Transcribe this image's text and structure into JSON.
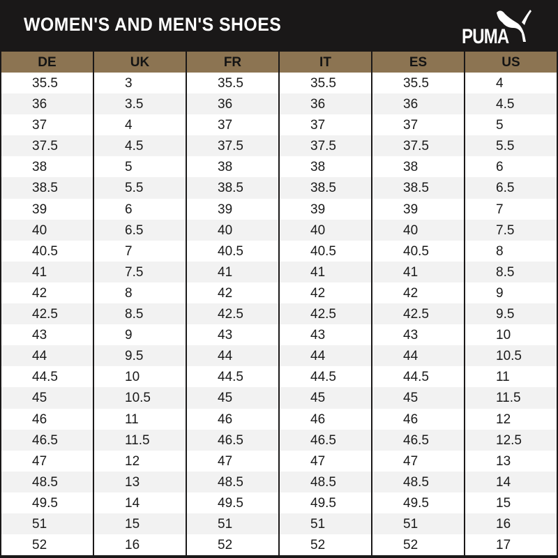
{
  "title": "WOMEN'S AND MEN'S SHOES",
  "logo": "PUMA",
  "colors": {
    "background": "#1a1818",
    "header_row": "#8c7452",
    "row_alt": "#f2f2f2"
  },
  "columns": [
    "DE",
    "UK",
    "FR",
    "IT",
    "ES",
    "US"
  ],
  "rows": [
    [
      "35.5",
      "3",
      "35.5",
      "35.5",
      "35.5",
      "4"
    ],
    [
      "36",
      "3.5",
      "36",
      "36",
      "36",
      "4.5"
    ],
    [
      "37",
      "4",
      "37",
      "37",
      "37",
      "5"
    ],
    [
      "37.5",
      "4.5",
      "37.5",
      "37.5",
      "37.5",
      "5.5"
    ],
    [
      "38",
      "5",
      "38",
      "38",
      "38",
      "6"
    ],
    [
      "38.5",
      "5.5",
      "38.5",
      "38.5",
      "38.5",
      "6.5"
    ],
    [
      "39",
      "6",
      "39",
      "39",
      "39",
      "7"
    ],
    [
      "40",
      "6.5",
      "40",
      "40",
      "40",
      "7.5"
    ],
    [
      "40.5",
      "7",
      "40.5",
      "40.5",
      "40.5",
      "8"
    ],
    [
      "41",
      "7.5",
      "41",
      "41",
      "41",
      "8.5"
    ],
    [
      "42",
      "8",
      "42",
      "42",
      "42",
      "9"
    ],
    [
      "42.5",
      "8.5",
      "42.5",
      "42.5",
      "42.5",
      "9.5"
    ],
    [
      "43",
      "9",
      "43",
      "43",
      "43",
      "10"
    ],
    [
      "44",
      "9.5",
      "44",
      "44",
      "44",
      "10.5"
    ],
    [
      "44.5",
      "10",
      "44.5",
      "44.5",
      "44.5",
      "11"
    ],
    [
      "45",
      "10.5",
      "45",
      "45",
      "45",
      "11.5"
    ],
    [
      "46",
      "11",
      "46",
      "46",
      "46",
      "12"
    ],
    [
      "46.5",
      "11.5",
      "46.5",
      "46.5",
      "46.5",
      "12.5"
    ],
    [
      "47",
      "12",
      "47",
      "47",
      "47",
      "13"
    ],
    [
      "48.5",
      "13",
      "48.5",
      "48.5",
      "48.5",
      "14"
    ],
    [
      "49.5",
      "14",
      "49.5",
      "49.5",
      "49.5",
      "15"
    ],
    [
      "51",
      "15",
      "51",
      "51",
      "51",
      "16"
    ],
    [
      "52",
      "16",
      "52",
      "52",
      "52",
      "17"
    ]
  ]
}
